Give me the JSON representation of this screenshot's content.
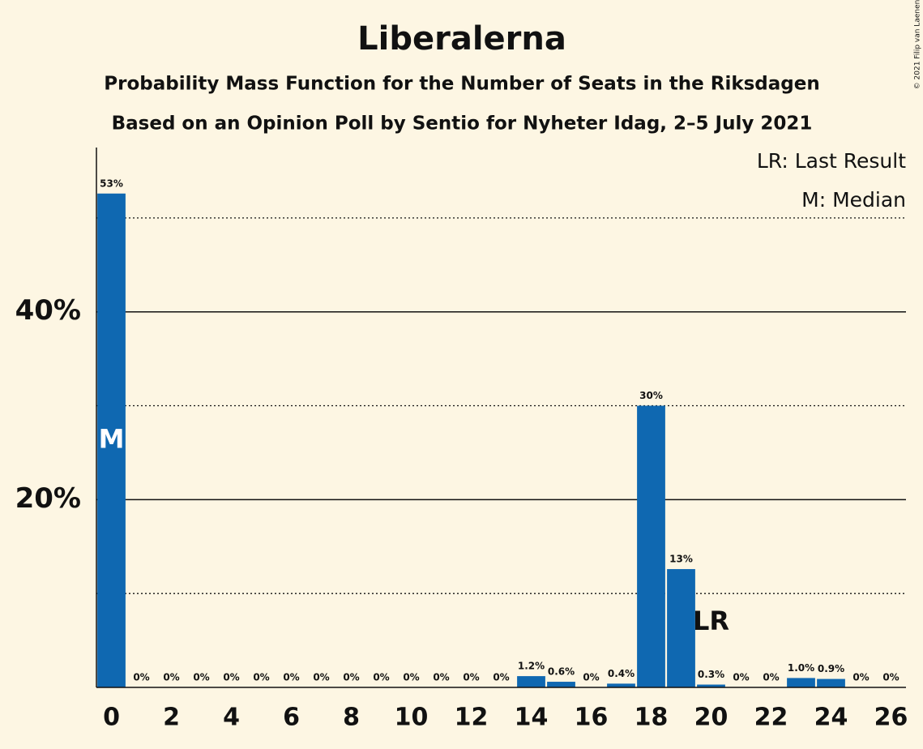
{
  "chart_data": {
    "type": "bar",
    "title": "Liberalerna",
    "subtitle": [
      "Probability Mass Function for the Number of Seats in the Riksdagen",
      "Based on an Opinion Poll by Sentio for Nyheter Idag, 2–5 July 2021"
    ],
    "x": [
      0,
      1,
      2,
      3,
      4,
      5,
      6,
      7,
      8,
      9,
      10,
      11,
      12,
      13,
      14,
      15,
      16,
      17,
      18,
      19,
      20,
      21,
      22,
      23,
      24,
      25,
      26
    ],
    "values": [
      52.6,
      0,
      0,
      0,
      0,
      0,
      0,
      0,
      0,
      0,
      0,
      0,
      0,
      0,
      1.2,
      0.6,
      0,
      0.4,
      30,
      12.6,
      0.3,
      0,
      0,
      1.0,
      0.9,
      0,
      0
    ],
    "value_labels": [
      "53%",
      "0%",
      "0%",
      "0%",
      "0%",
      "0%",
      "0%",
      "0%",
      "0%",
      "0%",
      "0%",
      "0%",
      "0%",
      "0%",
      "1.2%",
      "0.6%",
      "0%",
      "0.4%",
      "30%",
      "13%",
      "0.3%",
      "0%",
      "0%",
      "1.0%",
      "0.9%",
      "0%",
      "0%"
    ],
    "color": "#0f68b1",
    "xlim": [
      -0.5,
      26.5
    ],
    "xticks": [
      0,
      2,
      4,
      6,
      8,
      10,
      12,
      14,
      16,
      18,
      20,
      22,
      24,
      26
    ],
    "ylim": [
      0,
      57.5
    ],
    "yticks": [
      {
        "value": 20,
        "label": "20%"
      },
      {
        "value": 40,
        "label": "40%"
      }
    ],
    "minor_yticks": [
      10,
      30,
      50
    ],
    "grid": true,
    "annotations": [
      {
        "text": "M",
        "x": 0
      },
      {
        "text": "LR",
        "x": 20
      }
    ],
    "legend": [
      "LR: Last Result",
      "M: Median"
    ],
    "legend_position": "top-right",
    "copyright": "© 2021 Filip van Laenen"
  }
}
